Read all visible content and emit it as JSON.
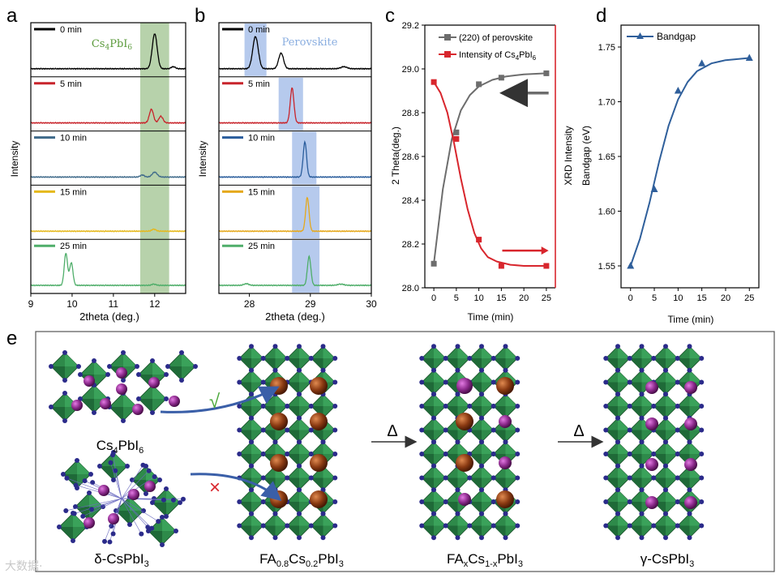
{
  "panel_letters": [
    "a",
    "b",
    "c",
    "d",
    "e"
  ],
  "watermark": "大数据·",
  "chart_data": [
    {
      "panel": "a",
      "type": "line",
      "title": "",
      "xlabel": "2theta (deg.)",
      "ylabel": "Intensity",
      "xlim": [
        9,
        12.75
      ],
      "xticks": [
        "9",
        "10",
        "11",
        "12"
      ],
      "xtick_values": [
        9,
        10,
        11,
        12
      ],
      "highlight": {
        "label": "Cs4PbI6",
        "label_main": "Cs",
        "label_sub1": "4",
        "label_mid": "PbI",
        "label_sub2": "6",
        "x_range": [
          11.65,
          12.35
        ],
        "color": "#9fc38f"
      },
      "series": [
        {
          "name": "0 min",
          "color": "#000000",
          "peaks": [
            {
              "x": 12.0,
              "h": 0.85,
              "w": 0.06
            },
            {
              "x": 12.45,
              "h": 0.05,
              "w": 0.05
            }
          ]
        },
        {
          "name": "5 min",
          "color": "#c8242b",
          "peaks": [
            {
              "x": 11.92,
              "h": 0.33,
              "w": 0.05
            },
            {
              "x": 12.15,
              "h": 0.16,
              "w": 0.05
            }
          ]
        },
        {
          "name": "10 min",
          "color": "#3f6a8a",
          "peaks": [
            {
              "x": 12.0,
              "h": 0.12,
              "w": 0.06
            },
            {
              "x": 11.7,
              "h": 0.05,
              "w": 0.05
            }
          ]
        },
        {
          "name": "15 min",
          "color": "#e5b81c",
          "peaks": [
            {
              "x": 11.98,
              "h": 0.05,
              "w": 0.05
            }
          ]
        },
        {
          "name": "25 min",
          "color": "#4fae6a",
          "peaks": [
            {
              "x": 9.85,
              "h": 0.78,
              "w": 0.04
            },
            {
              "x": 9.98,
              "h": 0.55,
              "w": 0.04
            },
            {
              "x": 11.98,
              "h": 0.03,
              "w": 0.05
            }
          ]
        }
      ]
    },
    {
      "panel": "b",
      "type": "line",
      "title": "",
      "xlabel": "2theta (deg.)",
      "ylabel": "Intensity",
      "xlim": [
        27.5,
        30
      ],
      "xticks": [
        "28",
        "29",
        "30"
      ],
      "xtick_values": [
        28,
        29,
        30
      ],
      "highlight_label": "Perovskite",
      "series": [
        {
          "name": "0 min",
          "color": "#000000",
          "band": [
            27.92,
            28.28
          ],
          "peaks": [
            {
              "x": 28.1,
              "h": 0.78,
              "w": 0.045
            },
            {
              "x": 28.52,
              "h": 0.38,
              "w": 0.04
            },
            {
              "x": 29.55,
              "h": 0.05,
              "w": 0.05
            }
          ]
        },
        {
          "name": "5 min",
          "color": "#c8242b",
          "band": [
            28.48,
            28.88
          ],
          "peaks": [
            {
              "x": 28.7,
              "h": 0.85,
              "w": 0.03
            }
          ]
        },
        {
          "name": "10 min",
          "color": "#2a5d9c",
          "band": [
            28.7,
            29.1
          ],
          "peaks": [
            {
              "x": 28.91,
              "h": 0.85,
              "w": 0.028
            }
          ]
        },
        {
          "name": "15 min",
          "color": "#e5a81c",
          "band": [
            28.7,
            29.15
          ],
          "peaks": [
            {
              "x": 28.95,
              "h": 0.82,
              "w": 0.028
            }
          ]
        },
        {
          "name": "25 min",
          "color": "#4fae6a",
          "band": [
            28.7,
            29.15
          ],
          "peaks": [
            {
              "x": 28.98,
              "h": 0.7,
              "w": 0.028
            },
            {
              "x": 27.95,
              "h": 0.04,
              "w": 0.04
            },
            {
              "x": 29.5,
              "h": 0.03,
              "w": 0.05
            }
          ]
        }
      ]
    },
    {
      "panel": "c",
      "type": "scatter",
      "title": "",
      "xlabel": "Time (min)",
      "ylabel": "2 Theta(deg.)",
      "right_ylabel": "XRD Intensity",
      "xlim": [
        -2,
        27
      ],
      "ylim": [
        28.0,
        29.2
      ],
      "xticks": [
        0,
        5,
        10,
        15,
        20,
        25
      ],
      "yticks": [
        28.0,
        28.2,
        28.4,
        28.6,
        28.8,
        29.0,
        29.2
      ],
      "ytick_labels": [
        "28.0",
        "28.2",
        "28.4",
        "28.6",
        "28.8",
        "29.0",
        "29.2"
      ],
      "legend": [
        {
          "label": "(220)  of perovskite",
          "color": "#6d6d6d"
        },
        {
          "label_main": "Intensity of Cs",
          "label_sub1": "4",
          "label_mid": "PbI",
          "label_sub2": "6",
          "color": "#d8262d"
        }
      ],
      "series": [
        {
          "name": "(220) of perovskite",
          "color": "#6d6d6d",
          "x": [
            0,
            5,
            10,
            15,
            25
          ],
          "y": [
            28.11,
            28.71,
            28.93,
            28.96,
            28.98
          ],
          "fit_x": [
            0,
            2,
            4,
            6,
            8,
            10,
            13,
            16,
            20,
            25
          ],
          "fit_y": [
            28.11,
            28.45,
            28.68,
            28.81,
            28.88,
            28.92,
            28.95,
            28.965,
            28.975,
            28.98
          ]
        },
        {
          "name": "Intensity of Cs4PbI6",
          "color": "#d8262d",
          "x": [
            0,
            5,
            10,
            15,
            25
          ],
          "y": [
            28.94,
            28.68,
            28.22,
            28.1,
            28.1
          ],
          "fit_x": [
            0,
            1.5,
            3,
            4.5,
            6,
            7.5,
            9,
            10.5,
            12,
            14,
            17,
            20,
            25
          ],
          "fit_y": [
            28.94,
            28.89,
            28.8,
            28.66,
            28.5,
            28.36,
            28.25,
            28.18,
            28.14,
            28.12,
            28.105,
            28.1,
            28.1
          ]
        }
      ]
    },
    {
      "panel": "d",
      "type": "line",
      "title": "",
      "xlabel": "Time (min)",
      "ylabel": "Bandgap (eV)",
      "xlim": [
        -2,
        27
      ],
      "ylim": [
        1.53,
        1.77
      ],
      "xticks": [
        0,
        5,
        10,
        15,
        20,
        25
      ],
      "yticks": [
        1.55,
        1.6,
        1.65,
        1.7,
        1.75
      ],
      "ytick_labels": [
        "1.55",
        "1.60",
        "1.65",
        "1.70",
        "1.75"
      ],
      "legend": [
        {
          "label": "Bandgap",
          "color": "#2f5f9b"
        }
      ],
      "series": [
        {
          "name": "Bandgap",
          "color": "#2f5f9b",
          "x": [
            0,
            5,
            10,
            15,
            25
          ],
          "y": [
            1.55,
            1.62,
            1.71,
            1.735,
            1.74
          ],
          "fit_x": [
            0,
            2,
            4,
            6,
            8,
            10,
            12,
            14,
            17,
            20,
            25
          ],
          "fit_y": [
            1.55,
            1.575,
            1.608,
            1.645,
            1.678,
            1.702,
            1.718,
            1.728,
            1.735,
            1.738,
            1.74
          ]
        }
      ]
    }
  ],
  "schematic": {
    "label_cs4pbi6": {
      "main": "Cs",
      "sub1": "4",
      "mid": "PbI",
      "sub2": "6"
    },
    "label_delta": {
      "main": "δ-CsPbI",
      "sub": "3"
    },
    "label_fa08": {
      "a": "FA",
      "s1": "0.8",
      "b": "Cs",
      "s2": "0.2",
      "c": "PbI",
      "s3": "3"
    },
    "label_fax": {
      "a": "FA",
      "s1": "x",
      "b": "Cs",
      "s2": "1-x",
      "c": "PbI",
      "s3": "3"
    },
    "label_gamma": {
      "main": "γ-CsPbI",
      "sub": "3"
    },
    "arrow1": "Δ",
    "arrow2": "Δ",
    "check": "√",
    "cross": "×",
    "colors": {
      "octahedron": "#2e8a4a",
      "octahedron_dark": "#1f6a38",
      "iodide": "#2b2b8a",
      "cs": "#8c2a8c",
      "fa": "#8a3a12"
    }
  }
}
